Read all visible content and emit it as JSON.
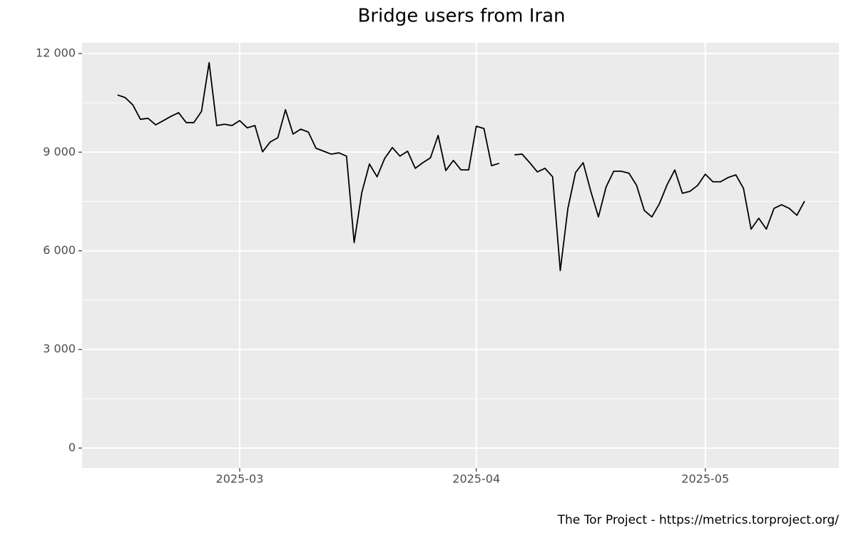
{
  "chart_data": {
    "type": "line",
    "title": "Bridge users from Iran",
    "caption": "The Tor Project - https://metrics.torproject.org/",
    "x": [
      44,
      45,
      46,
      47,
      48,
      49,
      50,
      51,
      52,
      53,
      54,
      55,
      56,
      57,
      58,
      59,
      60,
      61,
      62,
      63,
      64,
      65,
      66,
      67,
      68,
      69,
      70,
      71,
      72,
      73,
      74,
      75,
      76,
      77,
      78,
      79,
      80,
      81,
      82,
      83,
      84,
      85,
      86,
      87,
      88,
      89,
      90,
      91,
      92,
      93,
      94,
      95,
      96,
      97,
      98,
      99,
      100,
      101,
      102,
      103,
      104,
      105,
      106,
      107,
      108,
      109,
      110,
      111,
      112,
      113,
      114,
      115,
      116,
      117,
      118,
      119,
      120,
      121,
      122,
      123,
      124,
      125,
      126,
      127,
      128,
      129,
      130,
      131,
      132,
      133,
      134
    ],
    "values": [
      10740,
      10660,
      10440,
      10000,
      10030,
      9830,
      9960,
      10090,
      10200,
      9900,
      9900,
      10240,
      11720,
      9810,
      9850,
      9810,
      9960,
      9740,
      9810,
      9010,
      9310,
      9440,
      10290,
      9550,
      9700,
      9610,
      9120,
      9030,
      8940,
      8980,
      8880,
      6250,
      7770,
      8640,
      8250,
      8810,
      9140,
      8880,
      9030,
      8510,
      8680,
      8830,
      9510,
      8440,
      8750,
      8460,
      8460,
      9790,
      9720,
      8590,
      8660,
      null,
      8920,
      8940,
      8680,
      8400,
      8510,
      8250,
      5400,
      7290,
      8380,
      8680,
      7810,
      7030,
      7940,
      8420,
      8420,
      8360,
      7990,
      7230,
      7030,
      7440,
      8010,
      8460,
      7750,
      7810,
      7990,
      8330,
      8100,
      8100,
      8230,
      8310,
      7900,
      6660,
      6990,
      6660,
      7290,
      7400,
      7290,
      7080,
      7510
    ],
    "color": "#000000",
    "xlim": [
      39.35,
      138.5
    ],
    "xticks": [
      {
        "value": 60,
        "label": "2025-03"
      },
      {
        "value": 91,
        "label": "2025-04"
      },
      {
        "value": 121,
        "label": "2025-05"
      }
    ],
    "ylim": [
      -608,
      12326
    ],
    "yticks": [
      {
        "value": 0,
        "label": "0"
      },
      {
        "value": 3000,
        "label": "3 000"
      },
      {
        "value": 6000,
        "label": "6 000"
      },
      {
        "value": 9000,
        "label": "9 000"
      },
      {
        "value": 12000,
        "label": "12 000"
      }
    ],
    "grid": true
  }
}
